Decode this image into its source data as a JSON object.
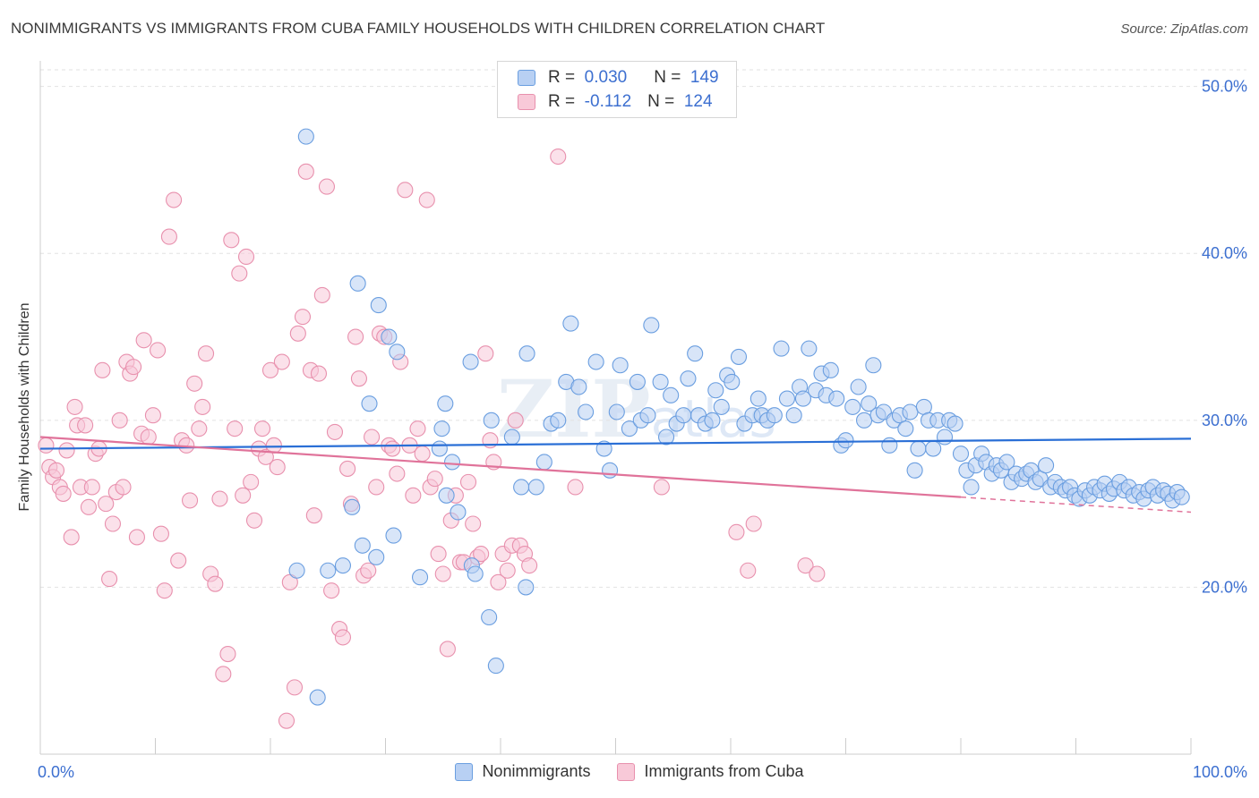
{
  "title": "NONIMMIGRANTS VS IMMIGRANTS FROM CUBA FAMILY HOUSEHOLDS WITH CHILDREN CORRELATION CHART",
  "source": "Source: ZipAtlas.com",
  "watermark": {
    "zip": "ZIP",
    "atlas": "atlas"
  },
  "legend": {
    "rows": [
      {
        "r_label": "R =",
        "r_value": "0.030",
        "n_label": "N =",
        "n_value": "149"
      },
      {
        "r_label": "R =",
        "r_value": "-0.112",
        "n_label": "N =",
        "n_value": "124"
      }
    ]
  },
  "colors": {
    "blue_fill": "#b8d0f3",
    "blue_stroke": "#6a9ee0",
    "blue_line": "#2a6fd6",
    "pink_fill": "#f8c9d8",
    "pink_stroke": "#e890ad",
    "pink_line": "#e0739a",
    "tick_label": "#3c6fd0"
  },
  "chart_data": {
    "type": "scatter",
    "xlabel": "",
    "ylabel": "Family Households with Children",
    "xlim": [
      0,
      100
    ],
    "ylim": [
      10,
      52
    ],
    "x_tick_labels": [
      "0.0%",
      "100.0%"
    ],
    "y_ticks": [
      20,
      30,
      40,
      50
    ],
    "y_tick_labels": [
      "20.0%",
      "30.0%",
      "40.0%",
      "50.0%"
    ],
    "grid": "horizontal dashed",
    "legend_position": "top-center",
    "series": [
      {
        "name": "Nonimmigrants",
        "color": "#6a9ee0",
        "trend": {
          "x": [
            0,
            100
          ],
          "y": [
            28.3,
            28.9
          ],
          "style": "solid"
        },
        "points": [
          [
            23.1,
            47.0
          ],
          [
            27.6,
            38.2
          ],
          [
            29.4,
            36.9
          ],
          [
            28.6,
            31.0
          ],
          [
            30.3,
            35.0
          ],
          [
            31.0,
            34.1
          ],
          [
            35.2,
            31.0
          ],
          [
            34.9,
            29.5
          ],
          [
            35.8,
            27.5
          ],
          [
            34.7,
            28.3
          ],
          [
            35.3,
            25.5
          ],
          [
            36.3,
            24.5
          ],
          [
            37.4,
            33.5
          ],
          [
            39.2,
            30.0
          ],
          [
            41.0,
            29.0
          ],
          [
            41.8,
            26.0
          ],
          [
            42.3,
            34.0
          ],
          [
            43.1,
            26.0
          ],
          [
            43.8,
            27.5
          ],
          [
            44.4,
            29.8
          ],
          [
            45.0,
            30.0
          ],
          [
            45.7,
            32.3
          ],
          [
            46.1,
            35.8
          ],
          [
            46.8,
            32.0
          ],
          [
            47.4,
            30.5
          ],
          [
            48.3,
            33.5
          ],
          [
            49.0,
            28.3
          ],
          [
            49.5,
            27.0
          ],
          [
            50.1,
            30.5
          ],
          [
            50.4,
            33.3
          ],
          [
            51.2,
            29.5
          ],
          [
            51.9,
            32.3
          ],
          [
            52.2,
            30.0
          ],
          [
            52.8,
            30.3
          ],
          [
            53.1,
            35.7
          ],
          [
            53.9,
            32.3
          ],
          [
            54.4,
            29.0
          ],
          [
            54.8,
            31.5
          ],
          [
            55.3,
            29.8
          ],
          [
            55.9,
            30.3
          ],
          [
            56.3,
            32.5
          ],
          [
            56.9,
            34.0
          ],
          [
            57.2,
            30.3
          ],
          [
            57.8,
            29.8
          ],
          [
            58.4,
            30.0
          ],
          [
            58.7,
            31.8
          ],
          [
            59.2,
            30.8
          ],
          [
            59.7,
            32.7
          ],
          [
            60.1,
            32.3
          ],
          [
            60.7,
            33.8
          ],
          [
            61.2,
            29.8
          ],
          [
            61.9,
            30.3
          ],
          [
            62.4,
            31.3
          ],
          [
            62.7,
            30.3
          ],
          [
            63.2,
            30.0
          ],
          [
            63.8,
            30.3
          ],
          [
            64.4,
            34.3
          ],
          [
            64.9,
            31.3
          ],
          [
            65.5,
            30.3
          ],
          [
            66.0,
            32.0
          ],
          [
            66.3,
            31.3
          ],
          [
            66.8,
            34.3
          ],
          [
            67.4,
            31.8
          ],
          [
            67.9,
            32.8
          ],
          [
            68.3,
            31.5
          ],
          [
            68.7,
            33.0
          ],
          [
            69.2,
            31.3
          ],
          [
            69.6,
            28.5
          ],
          [
            70.0,
            28.8
          ],
          [
            70.6,
            30.8
          ],
          [
            71.1,
            32.0
          ],
          [
            71.6,
            30.0
          ],
          [
            72.0,
            31.0
          ],
          [
            72.4,
            33.3
          ],
          [
            72.8,
            30.3
          ],
          [
            73.3,
            30.5
          ],
          [
            73.8,
            28.5
          ],
          [
            74.2,
            30.0
          ],
          [
            74.7,
            30.3
          ],
          [
            75.2,
            29.5
          ],
          [
            75.6,
            30.5
          ],
          [
            76.0,
            27.0
          ],
          [
            76.3,
            28.3
          ],
          [
            76.8,
            30.8
          ],
          [
            77.2,
            30.0
          ],
          [
            77.6,
            28.3
          ],
          [
            78.0,
            30.0
          ],
          [
            78.6,
            29.0
          ],
          [
            79.0,
            30.0
          ],
          [
            79.5,
            29.8
          ],
          [
            80.0,
            28.0
          ],
          [
            80.5,
            27.0
          ],
          [
            80.9,
            26.0
          ],
          [
            81.3,
            27.3
          ],
          [
            81.8,
            28.0
          ],
          [
            82.2,
            27.5
          ],
          [
            82.7,
            26.8
          ],
          [
            83.1,
            27.3
          ],
          [
            83.5,
            27.0
          ],
          [
            84.0,
            27.5
          ],
          [
            84.4,
            26.3
          ],
          [
            84.8,
            26.8
          ],
          [
            85.3,
            26.5
          ],
          [
            85.7,
            26.8
          ],
          [
            86.1,
            27.0
          ],
          [
            86.5,
            26.3
          ],
          [
            86.9,
            26.5
          ],
          [
            87.4,
            27.3
          ],
          [
            87.8,
            26.0
          ],
          [
            88.2,
            26.3
          ],
          [
            88.7,
            26.0
          ],
          [
            89.1,
            25.8
          ],
          [
            89.5,
            26.0
          ],
          [
            89.9,
            25.5
          ],
          [
            90.3,
            25.3
          ],
          [
            90.8,
            25.8
          ],
          [
            91.2,
            25.5
          ],
          [
            91.6,
            26.0
          ],
          [
            92.1,
            25.8
          ],
          [
            92.5,
            26.2
          ],
          [
            92.9,
            25.6
          ],
          [
            93.3,
            25.9
          ],
          [
            93.8,
            26.3
          ],
          [
            94.2,
            25.8
          ],
          [
            94.6,
            26.0
          ],
          [
            95.0,
            25.5
          ],
          [
            95.5,
            25.7
          ],
          [
            95.9,
            25.3
          ],
          [
            96.3,
            25.8
          ],
          [
            96.7,
            26.0
          ],
          [
            97.1,
            25.5
          ],
          [
            97.6,
            25.8
          ],
          [
            98.0,
            25.6
          ],
          [
            98.4,
            25.2
          ],
          [
            98.8,
            25.7
          ],
          [
            99.2,
            25.4
          ],
          [
            22.3,
            21.0
          ],
          [
            25.0,
            21.0
          ],
          [
            26.3,
            21.3
          ],
          [
            27.1,
            24.8
          ],
          [
            28.0,
            22.5
          ],
          [
            29.2,
            21.8
          ],
          [
            30.7,
            23.1
          ],
          [
            33.0,
            20.6
          ],
          [
            37.5,
            21.3
          ],
          [
            37.8,
            20.8
          ],
          [
            39.0,
            18.2
          ],
          [
            39.6,
            15.3
          ],
          [
            42.2,
            20.0
          ],
          [
            24.1,
            13.4
          ]
        ]
      },
      {
        "name": "Immigrants from Cuba",
        "color": "#e890ad",
        "trend": {
          "x": [
            0,
            80
          ],
          "y": [
            29.0,
            25.4
          ],
          "style": "solid",
          "dashed_extension": {
            "x": [
              80,
              100
            ],
            "y": [
              25.4,
              24.5
            ]
          }
        },
        "points": [
          [
            0.5,
            28.5
          ],
          [
            0.8,
            27.2
          ],
          [
            1.1,
            26.6
          ],
          [
            1.4,
            27.0
          ],
          [
            1.7,
            26.0
          ],
          [
            2.0,
            25.6
          ],
          [
            2.3,
            28.2
          ],
          [
            2.7,
            23.0
          ],
          [
            3.0,
            30.8
          ],
          [
            3.2,
            29.7
          ],
          [
            3.5,
            26.0
          ],
          [
            3.9,
            29.7
          ],
          [
            4.2,
            24.8
          ],
          [
            4.5,
            26.0
          ],
          [
            4.8,
            28.0
          ],
          [
            5.1,
            28.3
          ],
          [
            5.4,
            33.0
          ],
          [
            5.7,
            25.0
          ],
          [
            6.0,
            20.5
          ],
          [
            6.3,
            23.8
          ],
          [
            6.6,
            25.7
          ],
          [
            6.9,
            30.0
          ],
          [
            7.2,
            26.0
          ],
          [
            7.5,
            33.5
          ],
          [
            7.8,
            32.8
          ],
          [
            8.1,
            33.2
          ],
          [
            8.4,
            23.0
          ],
          [
            8.8,
            29.2
          ],
          [
            9.0,
            34.8
          ],
          [
            9.4,
            29.0
          ],
          [
            9.8,
            30.3
          ],
          [
            10.2,
            34.2
          ],
          [
            10.5,
            23.2
          ],
          [
            10.8,
            19.8
          ],
          [
            11.2,
            41.0
          ],
          [
            11.6,
            43.2
          ],
          [
            12.0,
            21.6
          ],
          [
            12.3,
            28.8
          ],
          [
            12.7,
            28.5
          ],
          [
            13.0,
            25.2
          ],
          [
            13.4,
            32.2
          ],
          [
            13.8,
            29.5
          ],
          [
            14.1,
            30.8
          ],
          [
            14.4,
            34.0
          ],
          [
            14.8,
            20.8
          ],
          [
            15.2,
            20.2
          ],
          [
            15.6,
            25.3
          ],
          [
            15.9,
            14.8
          ],
          [
            16.3,
            16.0
          ],
          [
            16.6,
            40.8
          ],
          [
            16.9,
            29.5
          ],
          [
            17.3,
            38.8
          ],
          [
            17.6,
            25.5
          ],
          [
            17.9,
            39.8
          ],
          [
            18.3,
            26.3
          ],
          [
            18.6,
            24.0
          ],
          [
            19.0,
            28.3
          ],
          [
            19.3,
            29.5
          ],
          [
            19.6,
            27.8
          ],
          [
            20.0,
            33.0
          ],
          [
            20.3,
            28.5
          ],
          [
            20.6,
            27.2
          ],
          [
            21.0,
            33.5
          ],
          [
            21.4,
            12.0
          ],
          [
            21.7,
            20.3
          ],
          [
            22.1,
            14.0
          ],
          [
            22.4,
            35.2
          ],
          [
            22.8,
            36.2
          ],
          [
            23.1,
            44.9
          ],
          [
            23.5,
            33.0
          ],
          [
            23.8,
            24.3
          ],
          [
            24.2,
            32.8
          ],
          [
            24.5,
            37.5
          ],
          [
            24.9,
            44.0
          ],
          [
            25.3,
            19.8
          ],
          [
            25.6,
            29.3
          ],
          [
            26.0,
            17.5
          ],
          [
            26.3,
            17.0
          ],
          [
            26.7,
            27.1
          ],
          [
            27.0,
            25.0
          ],
          [
            27.4,
            35.0
          ],
          [
            27.7,
            32.5
          ],
          [
            28.1,
            20.7
          ],
          [
            28.5,
            21.0
          ],
          [
            28.8,
            29.0
          ],
          [
            29.2,
            26.0
          ],
          [
            29.5,
            35.2
          ],
          [
            29.9,
            35.0
          ],
          [
            30.3,
            28.5
          ],
          [
            30.6,
            28.3
          ],
          [
            31.0,
            26.8
          ],
          [
            31.3,
            33.5
          ],
          [
            31.7,
            43.8
          ],
          [
            32.1,
            28.5
          ],
          [
            32.4,
            25.5
          ],
          [
            32.8,
            29.5
          ],
          [
            33.2,
            28.0
          ],
          [
            33.6,
            43.2
          ],
          [
            33.9,
            26.0
          ],
          [
            34.3,
            26.5
          ],
          [
            34.6,
            22.0
          ],
          [
            35.0,
            20.8
          ],
          [
            35.4,
            16.3
          ],
          [
            35.7,
            24.0
          ],
          [
            36.1,
            25.5
          ],
          [
            36.5,
            21.5
          ],
          [
            36.8,
            21.5
          ],
          [
            37.2,
            26.3
          ],
          [
            37.6,
            23.8
          ],
          [
            38.0,
            21.8
          ],
          [
            38.3,
            22.0
          ],
          [
            38.7,
            34.0
          ],
          [
            39.1,
            28.8
          ],
          [
            39.4,
            27.5
          ],
          [
            39.8,
            20.3
          ],
          [
            40.2,
            22.0
          ],
          [
            40.6,
            21.0
          ],
          [
            41.0,
            22.5
          ],
          [
            41.3,
            30.0
          ],
          [
            41.7,
            22.5
          ],
          [
            42.1,
            22.0
          ],
          [
            42.5,
            21.3
          ],
          [
            45.0,
            45.8
          ],
          [
            46.5,
            26.0
          ],
          [
            54.0,
            26.0
          ],
          [
            60.5,
            23.3
          ],
          [
            61.5,
            21.0
          ],
          [
            62.0,
            23.8
          ],
          [
            66.5,
            21.3
          ],
          [
            67.5,
            20.8
          ]
        ]
      }
    ]
  }
}
